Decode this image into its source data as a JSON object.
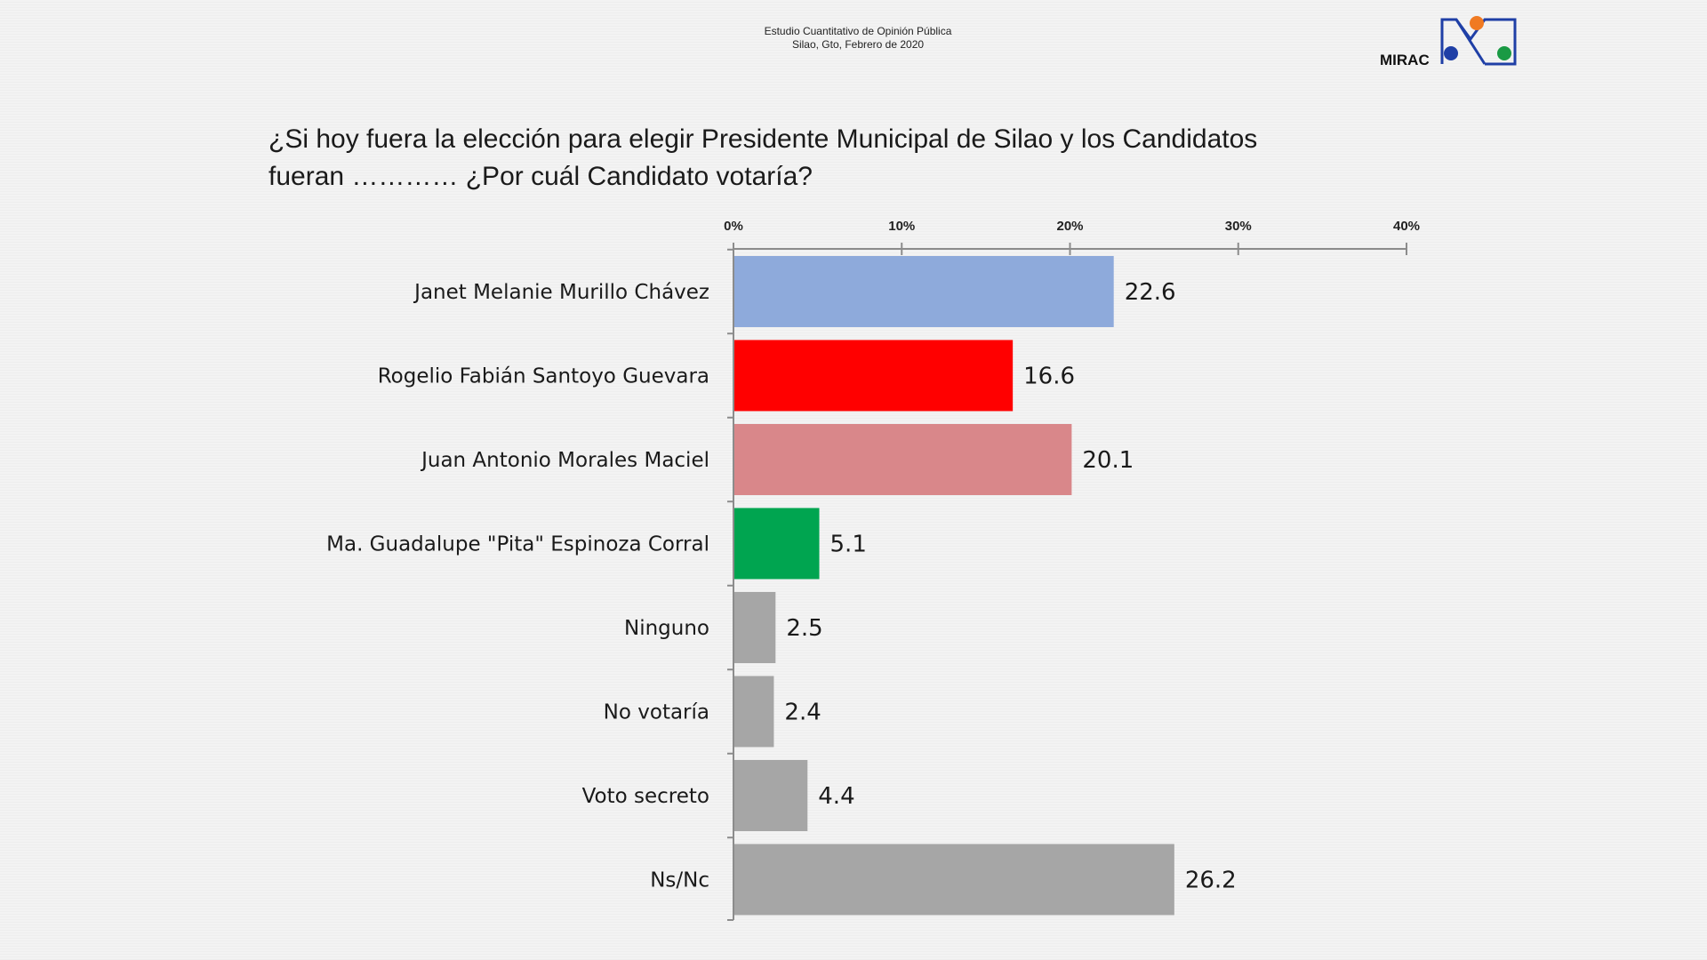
{
  "header": {
    "study_title": "Estudio Cuantitativo de Opinión Pública",
    "study_place_date": "Silao, Gto, Febrero de 2020"
  },
  "logo": {
    "text": "MIRAC",
    "colors": {
      "orange": "#f07a22",
      "blue": "#1f3fa6",
      "green": "#1a9a44",
      "frame": "#1f3fa6"
    }
  },
  "question": {
    "line1": "¿Si hoy fuera la elección para elegir Presidente Municipal de Silao y los Candidatos",
    "line2": "fueran ………… ¿Por cuál Candidato votaría?"
  },
  "chart_data": {
    "type": "bar",
    "orientation": "horizontal",
    "title": "¿Si hoy fuera la elección para elegir Presidente Municipal de Silao y los Candidatos fueran ………… ¿Por cuál Candidato votaría?",
    "xlim": [
      0,
      40
    ],
    "ticks": [
      0,
      10,
      20,
      30,
      40
    ],
    "tick_labels": [
      "0%",
      "10%",
      "20%",
      "30%",
      "40%"
    ],
    "axis_position": "top",
    "grid": false,
    "categories": [
      "Janet Melanie Murillo Chávez",
      "Rogelio Fabián Santoyo Guevara",
      "Juan Antonio Morales Maciel",
      "Ma. Guadalupe \"Pita\" Espinoza Corral",
      "Ninguno",
      "No votaría",
      "Voto secreto",
      "Ns/Nc"
    ],
    "values": [
      22.6,
      16.6,
      20.1,
      5.1,
      2.5,
      2.4,
      4.4,
      26.2
    ],
    "value_labels": [
      "22.6",
      "16.6",
      "20.1",
      "5.1",
      "2.5",
      "2.4",
      "4.4",
      "26.2"
    ],
    "colors": [
      "#8eaadb",
      "#ff0000",
      "#d9878a",
      "#00a550",
      "#a6a6a6",
      "#a6a6a6",
      "#a6a6a6",
      "#a6a6a6"
    ]
  }
}
